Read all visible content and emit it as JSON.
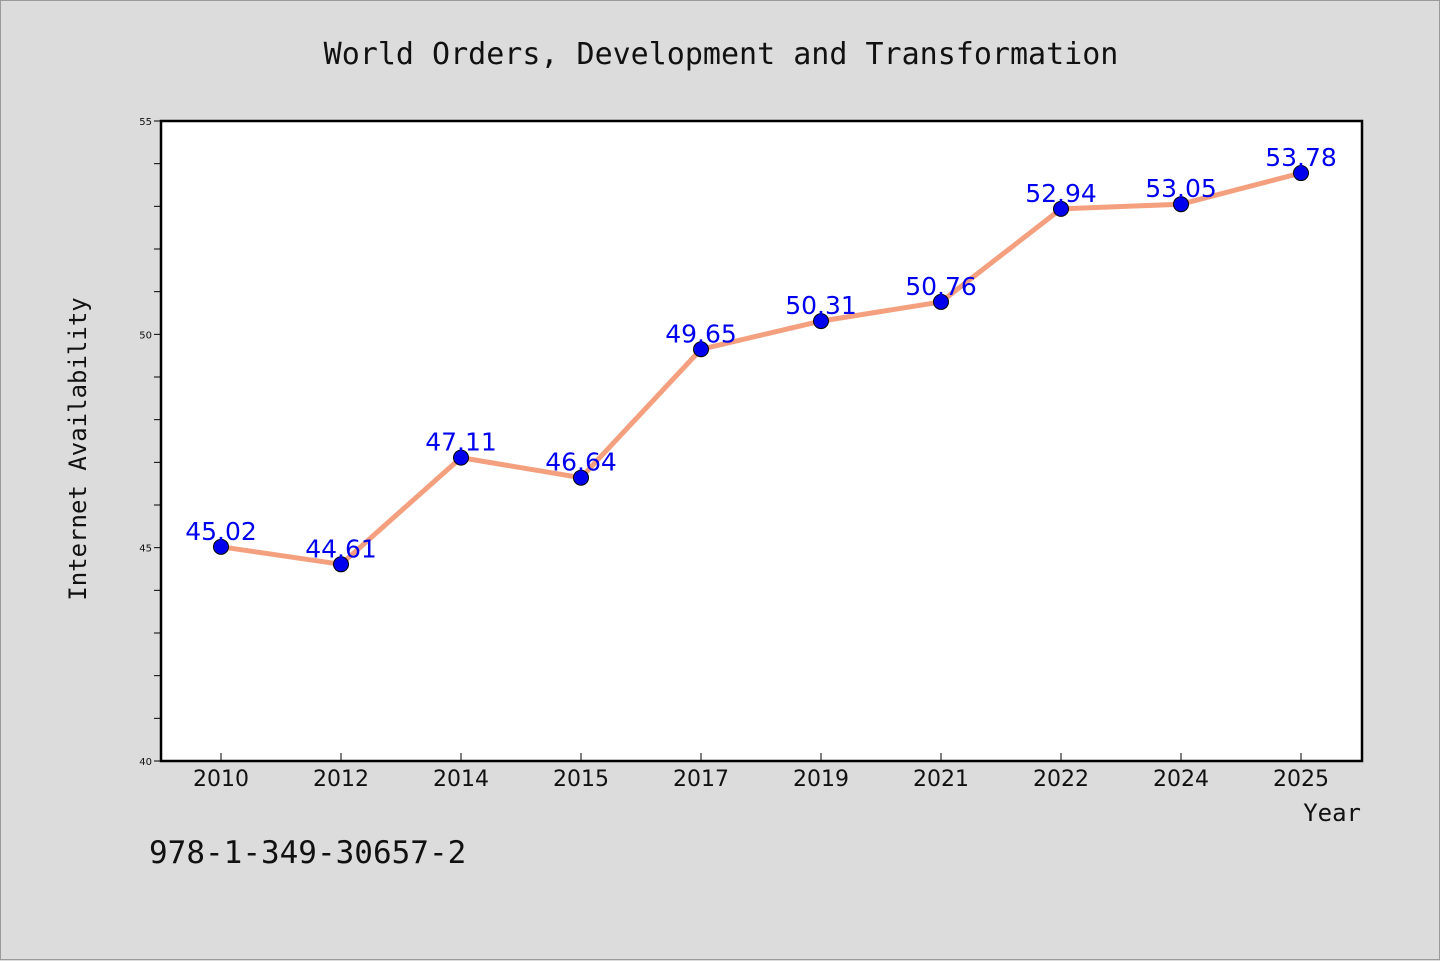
{
  "chart_data": {
    "type": "line",
    "title": "World Orders, Development and Transformation",
    "xlabel": "Year",
    "ylabel": "Internet Availability",
    "categories": [
      "2010",
      "2012",
      "2014",
      "2015",
      "2017",
      "2019",
      "2021",
      "2022",
      "2024",
      "2025"
    ],
    "series": [
      {
        "values": [
          45.02,
          44.61,
          47.11,
          46.64,
          49.65,
          50.31,
          50.76,
          52.94,
          53.05,
          53.78
        ]
      }
    ],
    "data_labels": [
      "45.02",
      "44.61",
      "47.11",
      "46.64",
      "49.65",
      "50.31",
      "50.76",
      "52.94",
      "53.05",
      "53.78"
    ],
    "ylim": [
      40,
      55
    ],
    "y_major_ticks": [
      40,
      45,
      50,
      55
    ],
    "y_tick_labels": [
      "40",
      "45",
      "50",
      "55"
    ],
    "y_minor_step": 1,
    "grid": false,
    "legend": "none",
    "colors": {
      "line": "#f4a07f",
      "marker": "#0000ee",
      "data_label": "#0000ee",
      "plot_background": "#ffffff",
      "figure_background": "#dcdcdc"
    }
  },
  "footer": {
    "isbn": "978-1-349-30657-2"
  }
}
